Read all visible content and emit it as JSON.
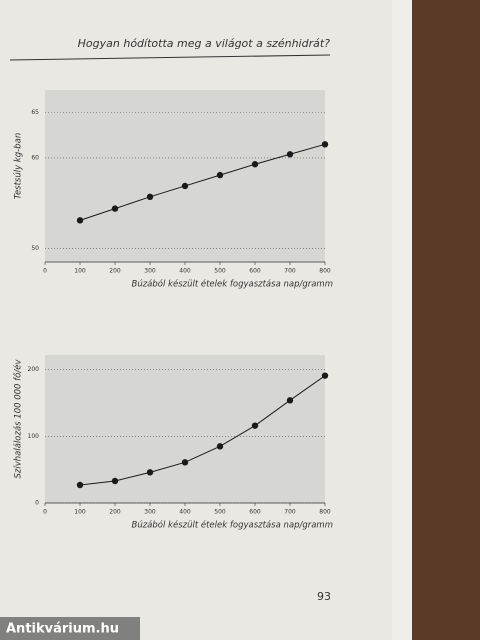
{
  "header": "Hogyan hódította meg a világot a szénhidrát?",
  "page_number": "93",
  "watermark": "Antikvárium.hu",
  "chart_data": [
    {
      "type": "line",
      "ylabel": "Testsúly kg-ban",
      "xlabel": "Búzából készült ételek fogyasztása nap/gramm",
      "x": [
        100,
        200,
        300,
        400,
        500,
        600,
        700,
        800
      ],
      "values": [
        53.1,
        54.4,
        55.7,
        56.9,
        58.1,
        59.3,
        60.4,
        61.5
      ],
      "color": "#1a1a1a",
      "xlim": [
        0,
        800
      ],
      "xticks": [
        0,
        100,
        200,
        300,
        400,
        500,
        600,
        700,
        800
      ],
      "ylim": [
        48.5,
        67.5
      ],
      "yticks": [
        50,
        60,
        65
      ],
      "grid": true
    },
    {
      "type": "line",
      "ylabel": "Szívhalálozás 100 000 fő/év",
      "xlabel": "Búzából készült ételek fogyasztása nap/gramm",
      "x": [
        100,
        200,
        300,
        400,
        500,
        600,
        700,
        800
      ],
      "values": [
        27,
        33,
        46,
        61,
        85,
        116,
        154,
        191
      ],
      "color": "#1a1a1a",
      "xlim": [
        0,
        800
      ],
      "xticks": [
        0,
        100,
        200,
        300,
        400,
        500,
        600,
        700,
        800
      ],
      "ylim": [
        0,
        222
      ],
      "yticks": [
        0,
        100,
        200
      ],
      "grid": true
    }
  ]
}
